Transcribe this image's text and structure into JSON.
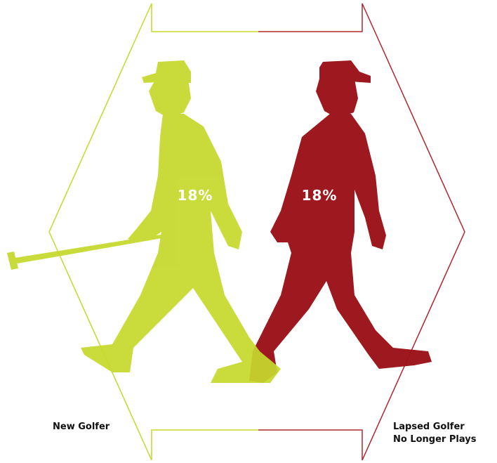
{
  "figures": [
    {
      "label": "New Golfer",
      "value_label": "18%"
    },
    {
      "label": "Lapsed Golfer",
      "sublabel": "No Longer Plays",
      "value_label": "18%"
    }
  ]
}
